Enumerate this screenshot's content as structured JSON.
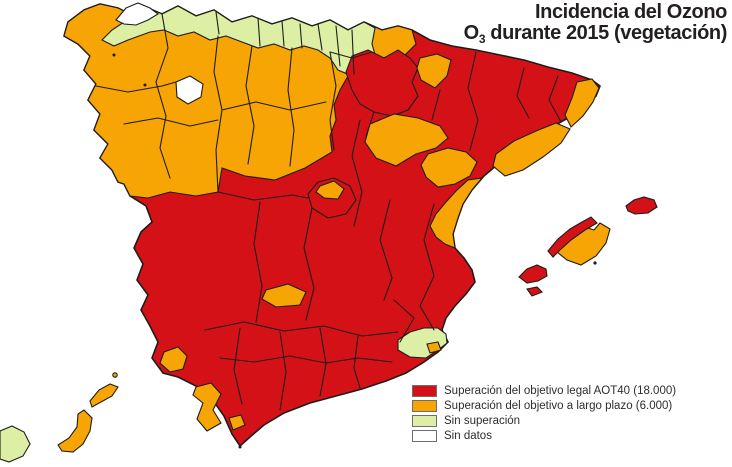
{
  "title": {
    "line1": "Incidencia del Ozono",
    "line2_prefix": "O",
    "line2_sub": "3",
    "line2_rest": " durante 2015 (vegetación)"
  },
  "legend": {
    "items": [
      {
        "label": "Superación del objetivo legal AOT40 (18.000)",
        "color_key": "red"
      },
      {
        "label": "Superación del objetivo a largo plazo (6.000)",
        "color_key": "orange"
      },
      {
        "label": "Sin superación",
        "color_key": "green"
      },
      {
        "label": "Sin datos",
        "color_key": "white"
      }
    ]
  },
  "colors": {
    "red": "#d51118",
    "orange": "#f7a504",
    "green": "#dcefa4",
    "white": "#ffffff",
    "border": "#1e1c1a",
    "dot": "#1e1c1a",
    "title_text": "#231f20",
    "legend_text": "#2d2d2d"
  },
  "map": {
    "regions": {
      "peninsula-base": "red",
      "north-orange-band": "orange",
      "north-coast-strip": "green",
      "galicia-north-tip": "white",
      "galicia-inner-patch": "white",
      "navarra-rioja": "red",
      "huesca-pocket": "orange",
      "zaragoza-area": "orange",
      "teruel-area": "orange",
      "catalonia-central": "orange",
      "girona-coast": "orange",
      "castellon-valencia-coast": "orange",
      "madrid-center": "orange",
      "ciudad-real-patch": "orange",
      "southeast-coast": "green",
      "southeast-orange-spot": "orange",
      "huelva-patch": "orange",
      "cadiz-patch": "orange",
      "malaga-spot": "orange",
      "menorca": "red",
      "mallorca-body": "orange",
      "mallorca-tramuntana": "red",
      "ibiza": "red",
      "formentera": "red",
      "canary-green-island": "green",
      "lanzarote": "orange",
      "lanzarote-islet": "orange",
      "fuerteventura": "orange"
    }
  }
}
